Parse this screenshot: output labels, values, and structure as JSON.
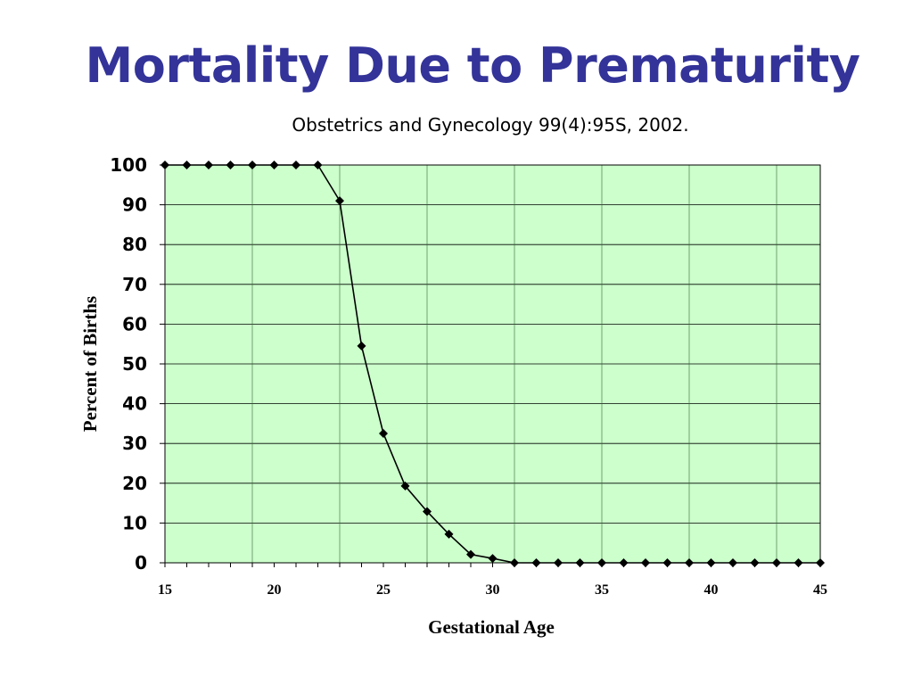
{
  "slide": {
    "title": "Mortality Due to Prematurity",
    "subtitle": "Obstetrics and Gynecology 99(4):95S, 2002."
  },
  "chart_data": {
    "type": "line",
    "title": "",
    "xlabel": "Gestational Age",
    "ylabel": "Percent of Births",
    "xlim": [
      15,
      45
    ],
    "ylim": [
      0,
      100
    ],
    "xticks": [
      15,
      20,
      25,
      30,
      35,
      40,
      45
    ],
    "yticks": [
      0,
      10,
      20,
      30,
      40,
      50,
      60,
      70,
      80,
      90,
      100
    ],
    "grid": true,
    "legend": "none",
    "plot_background": "#ccffcc",
    "line_color": "#000000",
    "marker": "diamond",
    "series": [
      {
        "x": [
          15,
          16,
          17,
          18,
          19,
          20,
          21,
          22,
          23,
          24,
          25,
          26,
          27,
          28,
          29,
          30,
          31,
          32,
          33,
          34,
          35,
          36,
          37,
          38,
          39,
          40,
          41,
          42,
          43,
          44,
          45
        ],
        "values": [
          100,
          100,
          100,
          100,
          100,
          100,
          100,
          100,
          91,
          54.5,
          32.5,
          19.3,
          12.9,
          7.2,
          2.1,
          1.1,
          0,
          0,
          0,
          0,
          0,
          0,
          0,
          0,
          0,
          0,
          0,
          0,
          0,
          0,
          0
        ]
      }
    ]
  }
}
